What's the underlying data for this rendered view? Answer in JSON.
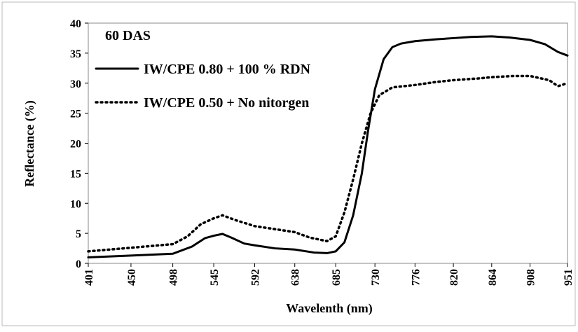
{
  "chart_data": {
    "type": "line",
    "annotation": "60 DAS",
    "x_label": "Wavelenth (nm)",
    "y_label": "Reflectance (%)",
    "xlim": [
      401,
      951
    ],
    "xticks": [
      401,
      450,
      498,
      545,
      592,
      638,
      685,
      730,
      776,
      820,
      864,
      908,
      951
    ],
    "ylim": [
      0,
      40
    ],
    "yticks": [
      0,
      5,
      10,
      15,
      20,
      25,
      30,
      35,
      40
    ],
    "legend": "upper left",
    "series": [
      {
        "name": "IW/CPE 0.80 + 100 % RDN",
        "color": "#000000",
        "line_style": "solid",
        "x": [
          401,
          450,
          498,
          520,
          535,
          545,
          555,
          565,
          580,
          592,
          615,
          638,
          660,
          675,
          685,
          695,
          705,
          715,
          722,
          730,
          740,
          750,
          760,
          776,
          800,
          820,
          840,
          864,
          885,
          908,
          925,
          940,
          951
        ],
        "values": [
          1.0,
          1.3,
          1.6,
          2.8,
          4.2,
          4.6,
          4.9,
          4.3,
          3.3,
          3.0,
          2.5,
          2.3,
          1.8,
          1.7,
          2.0,
          3.5,
          8,
          15,
          22,
          29,
          34,
          36,
          36.6,
          37,
          37.3,
          37.5,
          37.7,
          37.8,
          37.6,
          37.2,
          36.5,
          35.2,
          34.6
        ]
      },
      {
        "name": "IW/CPE 0.50 + No nitorgen",
        "color": "#000000",
        "line_style": "dotted",
        "x": [
          401,
          450,
          498,
          515,
          530,
          545,
          555,
          570,
          592,
          615,
          638,
          655,
          675,
          685,
          695,
          705,
          715,
          725,
          735,
          750,
          776,
          800,
          820,
          850,
          864,
          890,
          908,
          930,
          940,
          951
        ],
        "values": [
          2.0,
          2.6,
          3.2,
          4.5,
          6.5,
          7.5,
          8.0,
          7.2,
          6.2,
          5.7,
          5.2,
          4.3,
          3.7,
          4.5,
          8.5,
          14,
          20,
          25,
          28,
          29.3,
          29.7,
          30.2,
          30.5,
          30.8,
          31,
          31.2,
          31.2,
          30.5,
          29.5,
          30
        ]
      }
    ]
  }
}
